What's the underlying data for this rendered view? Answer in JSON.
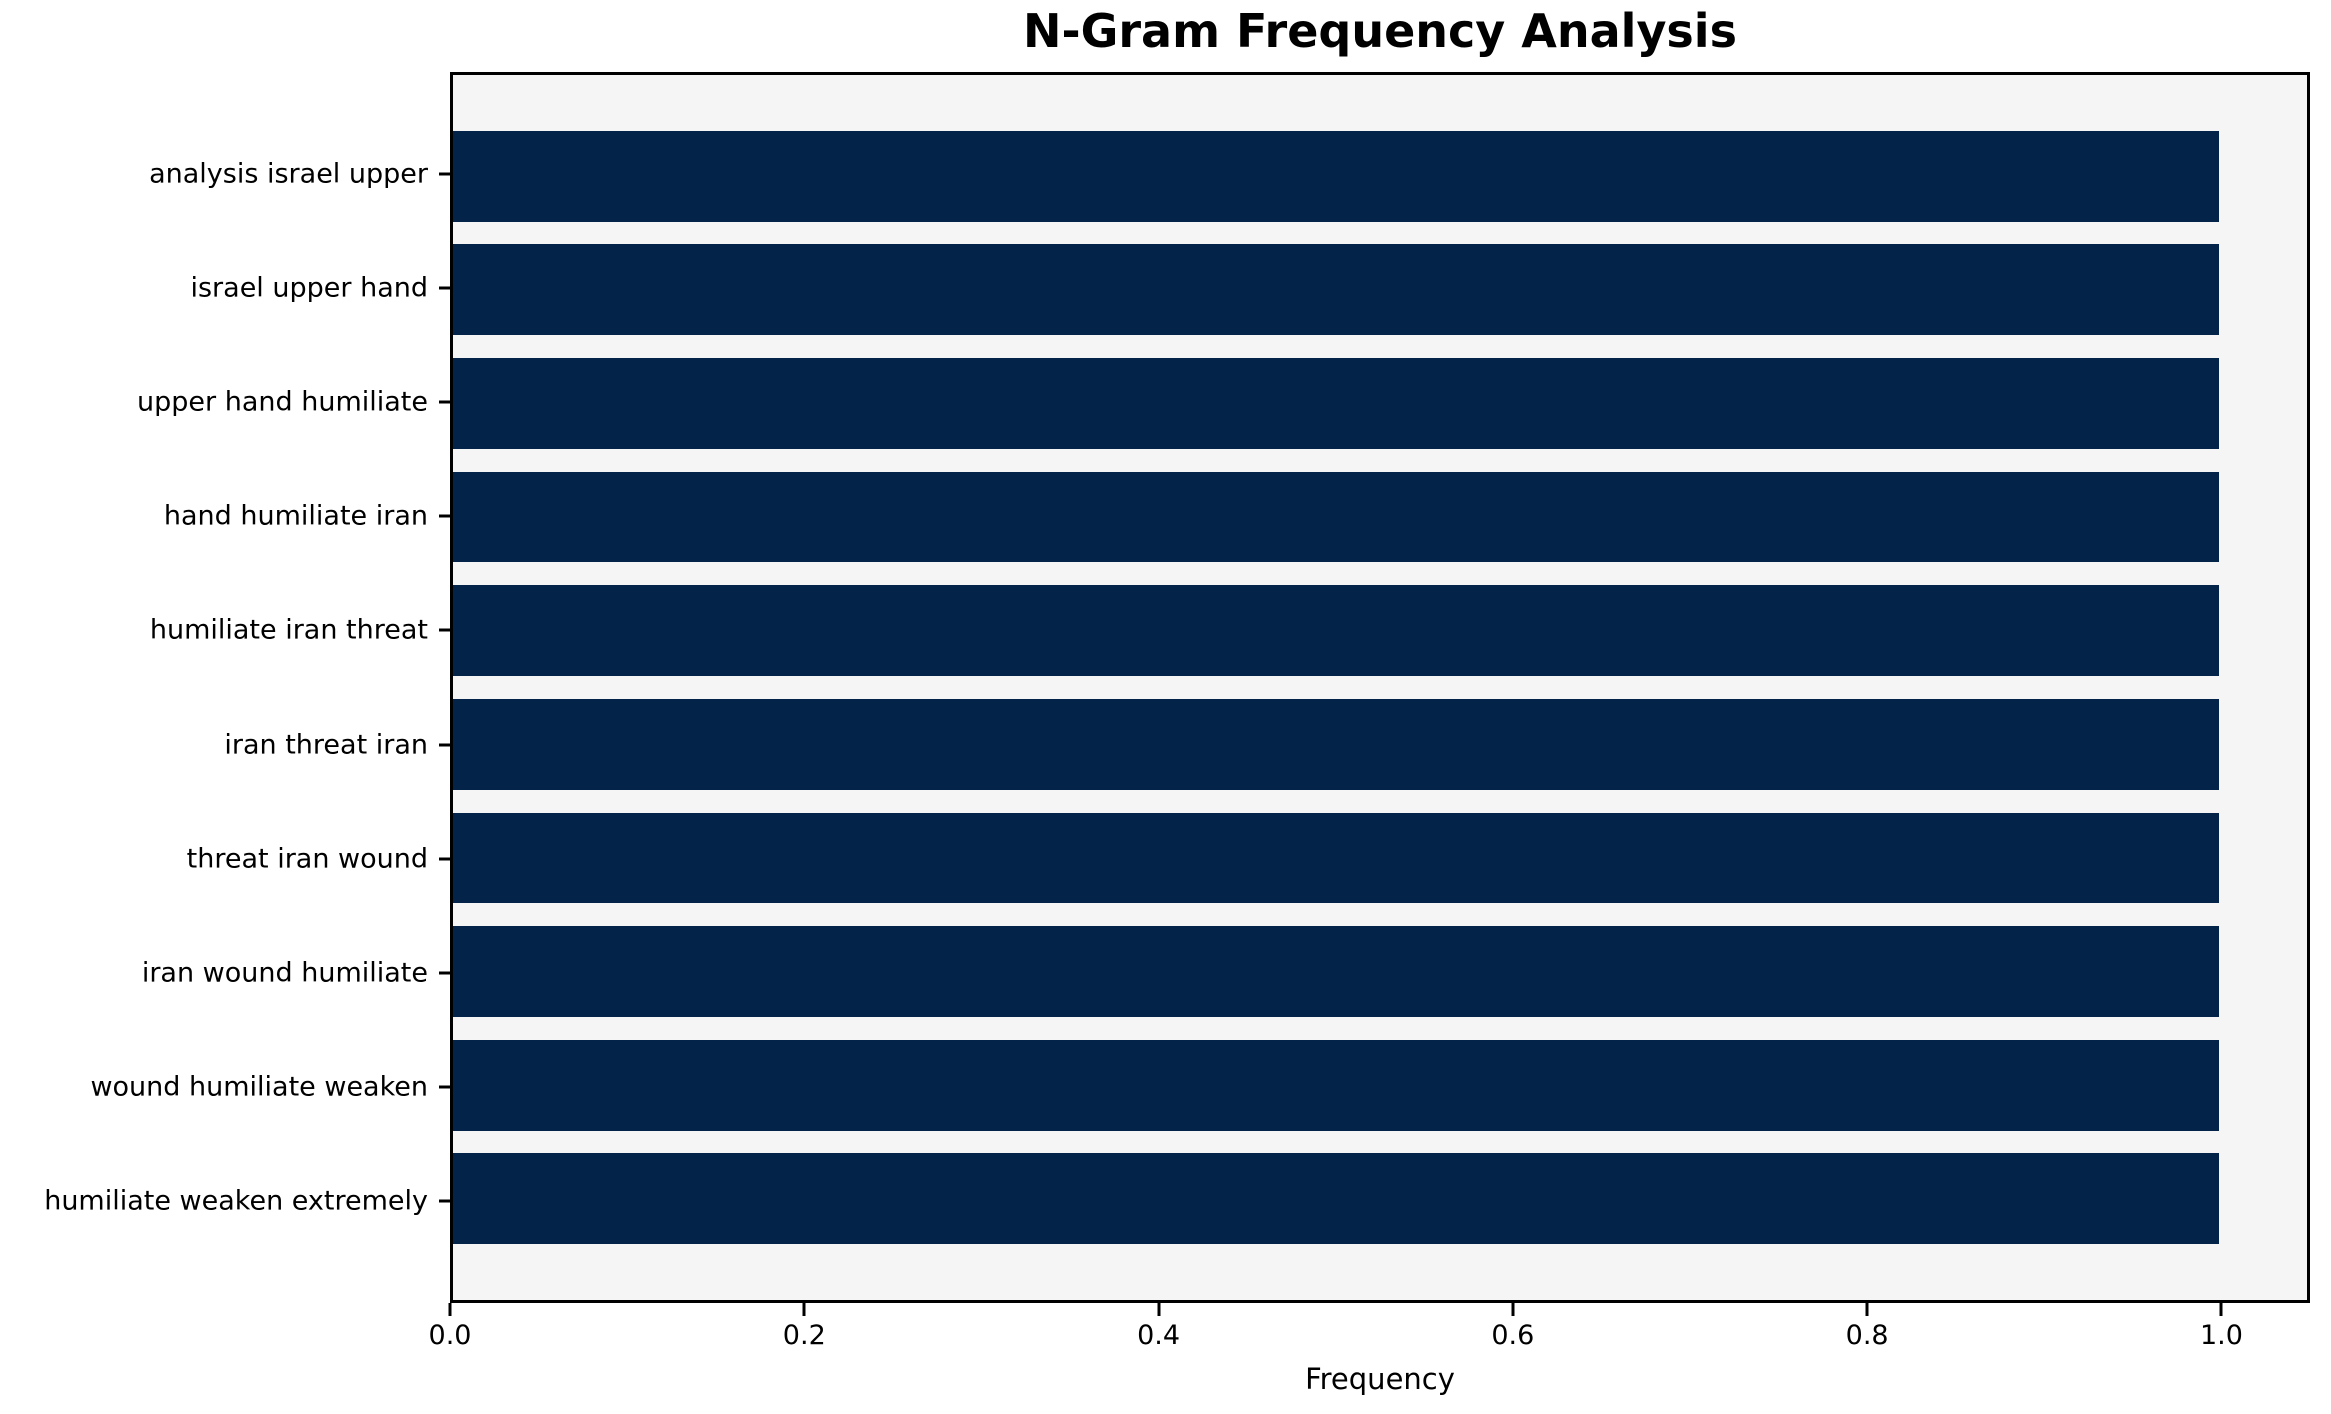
{
  "chart_data": {
    "type": "bar",
    "orientation": "horizontal",
    "title": "N-Gram Frequency Analysis",
    "xlabel": "Frequency",
    "ylabel": "",
    "categories": [
      "analysis israel upper",
      "israel upper hand",
      "upper hand humiliate",
      "hand humiliate iran",
      "humiliate iran threat",
      "iran threat iran",
      "threat iran wound",
      "iran wound humiliate",
      "wound humiliate weaken",
      "humiliate weaken extremely"
    ],
    "values": [
      1.0,
      1.0,
      1.0,
      1.0,
      1.0,
      1.0,
      1.0,
      1.0,
      1.0,
      1.0
    ],
    "xlim": [
      0,
      1.05
    ],
    "xticks": [
      "0.0",
      "0.2",
      "0.4",
      "0.6",
      "0.8",
      "1.0"
    ],
    "xtick_values": [
      0.0,
      0.2,
      0.4,
      0.6,
      0.8,
      1.0
    ],
    "grid": false,
    "legend": null,
    "colors": {
      "bar": "#032349",
      "plot_background": "#f5f5f6",
      "figure_background": "#ffffff",
      "spine": "#000000",
      "text": "#000000"
    },
    "layout_hints": {
      "bar_height_units": 0.8,
      "y_edge_margin_units": 0.89,
      "title_position": "center-over-axes",
      "first_category_at_top": true
    }
  }
}
